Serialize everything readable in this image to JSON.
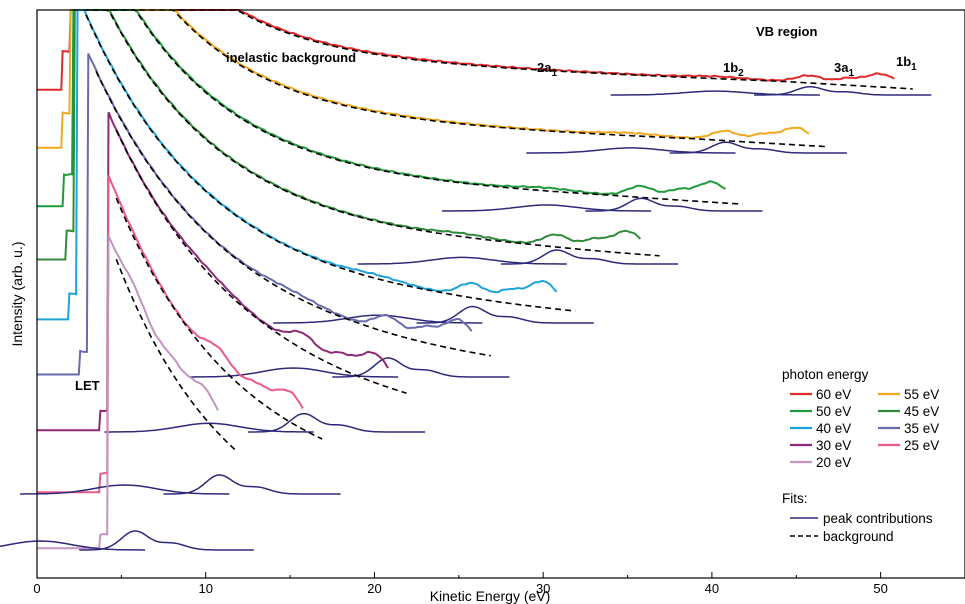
{
  "chart_data": {
    "type": "line",
    "xlabel": "Kinetic Energy (eV)",
    "ylabel": "Intensity (arb. u.)",
    "xlim": [
      0,
      55
    ],
    "xticks": [
      "0",
      "10",
      "20",
      "30",
      "40",
      "50"
    ],
    "grid": false,
    "annotations": {
      "vb_region": "VB region",
      "inelastic": "inelastic background",
      "let": "LET",
      "peaks": [
        {
          "label": "2a",
          "sub": "1"
        },
        {
          "label": "1b",
          "sub": "2"
        },
        {
          "label": "3a",
          "sub": "1"
        },
        {
          "label": "1b",
          "sub": "1"
        }
      ]
    },
    "legend": {
      "placement": "bottom-right",
      "title": "photon energy",
      "fits_title": "Fits:",
      "fits": [
        {
          "name": "peak contributions",
          "color": "#2e2a7a",
          "style": "solid"
        },
        {
          "name": "background",
          "color": "#000000",
          "style": "dashed"
        }
      ]
    },
    "series": [
      {
        "name": "60 eV",
        "photon_energy": 60,
        "color": "#e02a2a"
      },
      {
        "name": "55 eV",
        "photon_energy": 55,
        "color": "#f2a81d"
      },
      {
        "name": "50 eV",
        "photon_energy": 50,
        "color": "#1f9a3c"
      },
      {
        "name": "45 eV",
        "photon_energy": 45,
        "color": "#2f8a3a"
      },
      {
        "name": "40 eV",
        "photon_energy": 40,
        "color": "#1ea3d8"
      },
      {
        "name": "35 eV",
        "photon_energy": 35,
        "color": "#6a6aae"
      },
      {
        "name": "30 eV",
        "photon_energy": 30,
        "color": "#8c2a78"
      },
      {
        "name": "25 eV",
        "photon_energy": 25,
        "color": "#e85a8a"
      },
      {
        "name": "20 eV",
        "photon_energy": 20,
        "color": "#c294c2"
      }
    ]
  }
}
